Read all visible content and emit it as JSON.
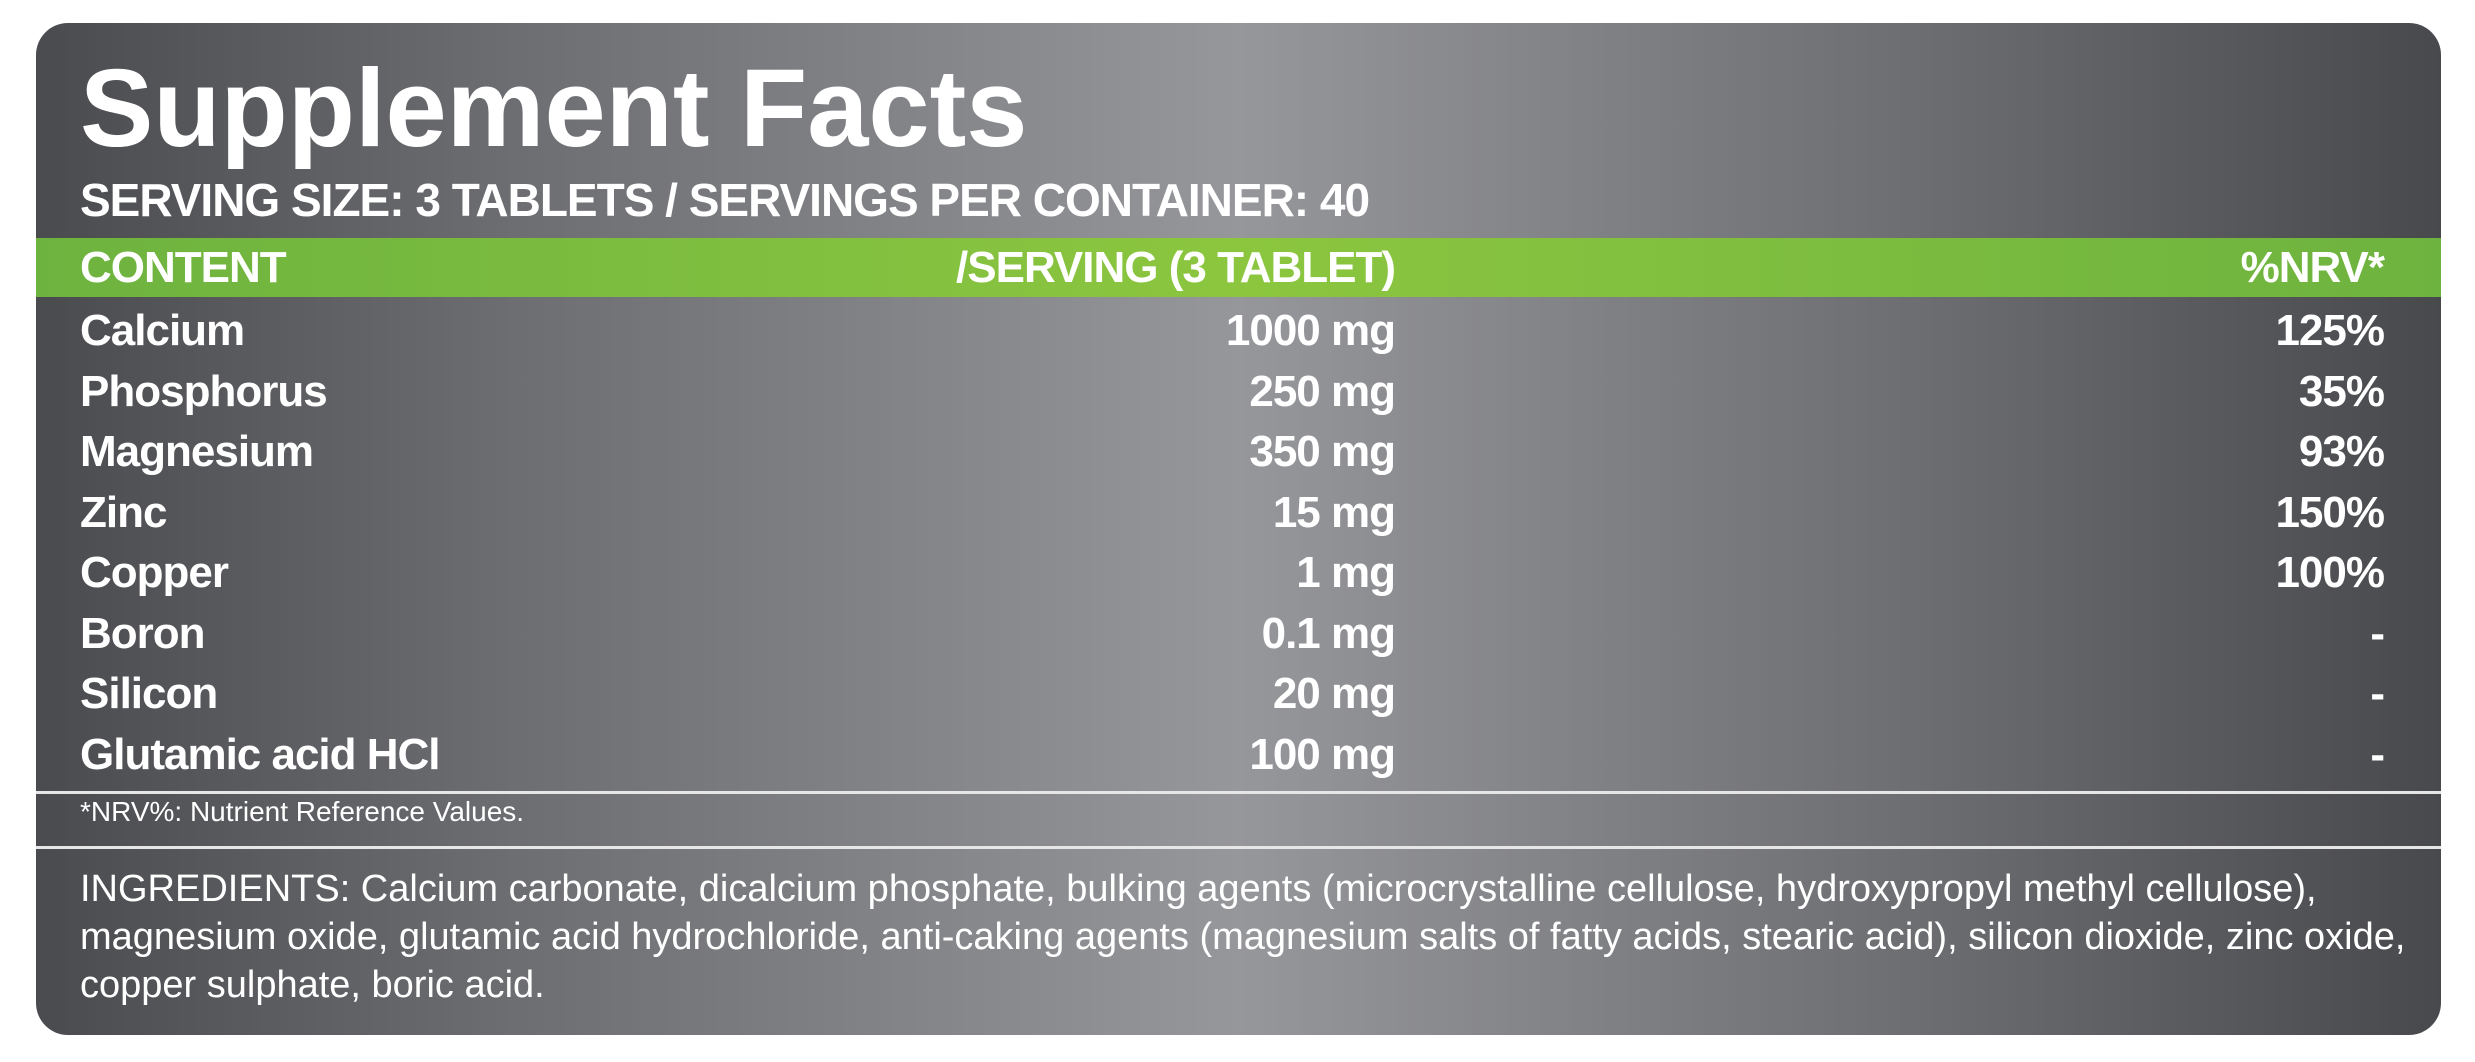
{
  "header": {
    "title": "Supplement Facts",
    "serving": "SERVING SIZE: 3 TABLETS / SERVINGS PER CONTAINER: 40"
  },
  "table": {
    "columns": [
      "CONTENT",
      "/SERVING (3 TABLET)",
      "%NRV*"
    ],
    "rows": [
      [
        "Calcium",
        "1000 mg",
        "125%"
      ],
      [
        "Phosphorus",
        "250 mg",
        "35%"
      ],
      [
        "Magnesium",
        "350 mg",
        "93%"
      ],
      [
        "Zinc",
        "15 mg",
        "150%"
      ],
      [
        "Copper",
        "1 mg",
        "100%"
      ],
      [
        "Boron",
        "0.1 mg",
        "-"
      ],
      [
        "Silicon",
        "20 mg",
        "-"
      ],
      [
        "Glutamic acid HCl",
        "100 mg",
        "-"
      ]
    ]
  },
  "footnote": "*NRV%: Nutrient Reference Values.",
  "ingredients": "INGREDIENTS: Calcium carbonate, dicalcium phosphate, bulking agents (microcrystalline cellulose, hydroxypropyl methyl cellulose), magnesium oxide, glutamic acid hydrochloride, anti-caking agents (magnesium salts of fatty acids, stearic acid), silicon dioxide, zinc oxide, copper sulphate, boric acid."
}
